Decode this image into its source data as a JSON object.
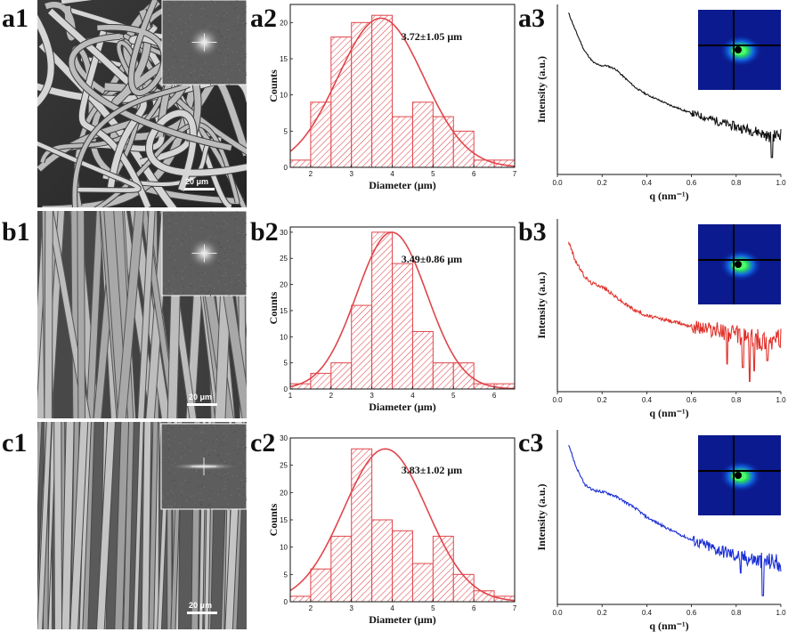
{
  "panel_labels": [
    "a1",
    "a2",
    "a3",
    "b1",
    "b2",
    "b3",
    "c1",
    "c2",
    "c3"
  ],
  "sem_images": [
    {
      "panel": "a1",
      "scale_bar": "20 μm",
      "fiber_style": "random"
    },
    {
      "panel": "b1",
      "scale_bar": "20 μm",
      "fiber_style": "semi-aligned"
    },
    {
      "panel": "c1",
      "scale_bar": "20 μm",
      "fiber_style": "aligned"
    }
  ],
  "colors": {
    "histogram": "#e0454b",
    "saxs_a": "#111111",
    "saxs_b": "#e0322b",
    "saxs_c": "#1a2fd6",
    "detector_bg": "#0b1a8e"
  },
  "chart_data": [
    {
      "panel": "a2",
      "type": "bar",
      "xlabel": "Diameter (μm)",
      "ylabel": "Counts",
      "annotation": "3.72±1.05 μm",
      "xlim": [
        1.5,
        7
      ],
      "ylim": [
        0,
        22.5
      ],
      "xticks": [
        2,
        3,
        4,
        5,
        6,
        7
      ],
      "yticks": [
        0,
        5,
        10,
        15,
        20
      ],
      "bin_width": 0.5,
      "bins": [
        1.5,
        2,
        2.5,
        3,
        3.5,
        4,
        4.5,
        5,
        5.5,
        6,
        6.5
      ],
      "counts": [
        1,
        9,
        18,
        20,
        21,
        7,
        9,
        7,
        5,
        1,
        1
      ],
      "fit": {
        "type": "gaussian",
        "mean": 3.72,
        "sigma": 1.05,
        "peak": 20.6
      }
    },
    {
      "panel": "b2",
      "type": "bar",
      "xlabel": "Diameter (μm)",
      "ylabel": "Counts",
      "annotation": "3.49±0.86 μm",
      "xlim": [
        1,
        6.5
      ],
      "ylim": [
        0,
        31
      ],
      "xticks": [
        1,
        2,
        3,
        4,
        5,
        6
      ],
      "yticks": [
        0,
        5,
        10,
        15,
        20,
        25,
        30
      ],
      "bin_width": 0.5,
      "bins": [
        1,
        1.5,
        2,
        2.5,
        3,
        3.5,
        4,
        4.5,
        5,
        5.5,
        6
      ],
      "counts": [
        1,
        3,
        5,
        16,
        30,
        24,
        11,
        5,
        5,
        1,
        1
      ],
      "fit": {
        "type": "gaussian",
        "mean": 3.49,
        "sigma": 0.86,
        "peak": 30
      }
    },
    {
      "panel": "c2",
      "type": "bar",
      "xlabel": "Diameter (μm)",
      "ylabel": "Counts",
      "annotation": "3.83±1.02 μm",
      "xlim": [
        1.5,
        7
      ],
      "ylim": [
        0,
        30
      ],
      "xticks": [
        2,
        3,
        4,
        5,
        6,
        7
      ],
      "yticks": [
        0,
        5,
        10,
        15,
        20,
        25,
        30
      ],
      "bin_width": 0.5,
      "bins": [
        1.5,
        2,
        2.5,
        3,
        3.5,
        4,
        4.5,
        5,
        5.5,
        6,
        6.5
      ],
      "counts": [
        1,
        6,
        12,
        28,
        15,
        13,
        7,
        12,
        5,
        2,
        1
      ],
      "fit": {
        "type": "gaussian",
        "mean": 3.83,
        "sigma": 1.02,
        "peak": 28
      }
    },
    {
      "panel": "a3",
      "type": "line",
      "xlabel": "q (nm⁻¹)",
      "ylabel": "Intensity (a.u.)",
      "xlim": [
        0,
        1
      ],
      "xticks": [
        "0.0",
        "0.2",
        "0.4",
        "0.6",
        "0.8",
        "1.0"
      ],
      "ylim": [
        0,
        1
      ],
      "x": [
        0.05,
        0.08,
        0.12,
        0.16,
        0.19,
        0.22,
        0.26,
        0.3,
        0.35,
        0.4,
        0.5,
        0.6,
        0.7,
        0.8,
        0.9,
        0.95,
        1.0
      ],
      "y": [
        0.95,
        0.85,
        0.73,
        0.66,
        0.64,
        0.64,
        0.62,
        0.57,
        0.51,
        0.47,
        0.41,
        0.36,
        0.32,
        0.28,
        0.25,
        0.22,
        0.24
      ],
      "noise": 0.02,
      "noise_start": 0.6,
      "dips": [
        {
          "q": 0.96,
          "y": 0.1
        }
      ]
    },
    {
      "panel": "b3",
      "type": "line",
      "xlabel": "q (nm⁻¹)",
      "ylabel": "Intensity (a.u.)",
      "xlim": [
        0,
        1
      ],
      "xticks": [
        "0.0",
        "0.2",
        "0.4",
        "0.6",
        "0.8",
        "1.0"
      ],
      "ylim": [
        0,
        1
      ],
      "x": [
        0.05,
        0.08,
        0.12,
        0.15,
        0.18,
        0.21,
        0.25,
        0.3,
        0.35,
        0.4,
        0.5,
        0.6,
        0.7,
        0.8,
        0.9,
        1.0
      ],
      "y": [
        0.87,
        0.76,
        0.67,
        0.63,
        0.62,
        0.6,
        0.56,
        0.51,
        0.47,
        0.44,
        0.41,
        0.38,
        0.36,
        0.33,
        0.3,
        0.3
      ],
      "noise": 0.04,
      "noise_start": 0.6,
      "dips": [
        {
          "q": 0.76,
          "y": 0.16
        },
        {
          "q": 0.83,
          "y": 0.14
        },
        {
          "q": 0.86,
          "y": 0.06
        },
        {
          "q": 0.88,
          "y": 0.12
        },
        {
          "q": 0.94,
          "y": 0.18
        }
      ]
    },
    {
      "panel": "c3",
      "type": "line",
      "xlabel": "q (nm⁻¹)",
      "ylabel": "Intensity (a.u.)",
      "xlim": [
        0,
        1
      ],
      "xticks": [
        "0.0",
        "0.2",
        "0.4",
        "0.6",
        "0.8",
        "1.0"
      ],
      "ylim": [
        0,
        1
      ],
      "x": [
        0.05,
        0.08,
        0.12,
        0.15,
        0.18,
        0.22,
        0.26,
        0.3,
        0.35,
        0.4,
        0.5,
        0.6,
        0.7,
        0.8,
        0.9,
        1.0
      ],
      "y": [
        0.92,
        0.8,
        0.69,
        0.66,
        0.65,
        0.64,
        0.62,
        0.59,
        0.55,
        0.5,
        0.43,
        0.37,
        0.32,
        0.28,
        0.25,
        0.24
      ],
      "noise": 0.03,
      "noise_start": 0.6,
      "dips": [
        {
          "q": 0.82,
          "y": 0.18
        },
        {
          "q": 0.92,
          "y": 0.05
        }
      ]
    }
  ]
}
